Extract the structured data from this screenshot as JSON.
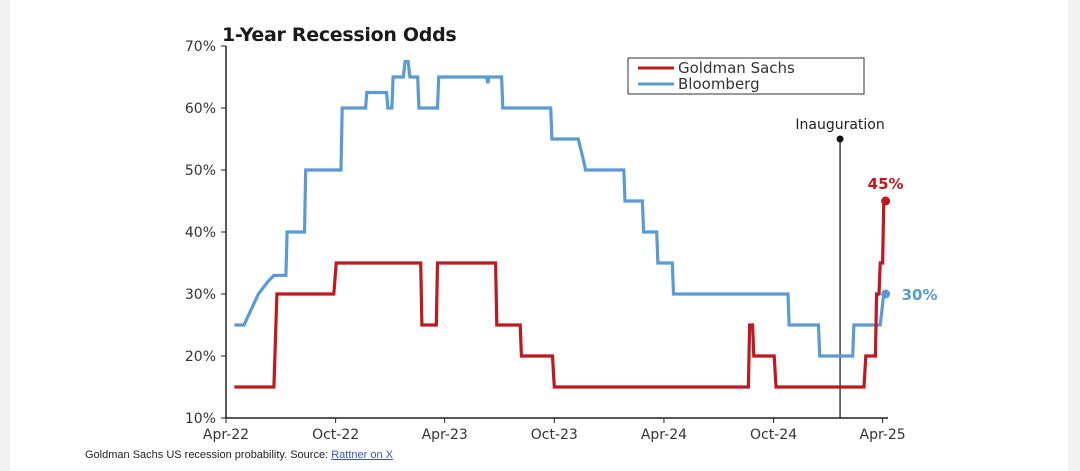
{
  "caption": {
    "text": "Goldman Sachs US recession probability. Source: ",
    "link_text": "Rattner on X"
  },
  "chart_data": {
    "type": "line",
    "title": "1-Year Recession Odds",
    "xlabel": "",
    "ylabel": "",
    "y_ticks": [
      "10%",
      "20%",
      "30%",
      "40%",
      "50%",
      "60%",
      "70%"
    ],
    "ylim": [
      10,
      70
    ],
    "x_ticks": [
      "Apr-22",
      "Oct-22",
      "Apr-23",
      "Oct-23",
      "Apr-24",
      "Oct-24",
      "Apr-25"
    ],
    "x_range": [
      "2022-04-01",
      "2025-04-10"
    ],
    "grid": false,
    "legend_position": "top-right",
    "series": [
      {
        "name": "Goldman Sachs",
        "color": "#c0181f",
        "step": true,
        "end_label": "45%",
        "points": [
          [
            "2022-04-15",
            15
          ],
          [
            "2022-06-20",
            15
          ],
          [
            "2022-06-25",
            30
          ],
          [
            "2022-09-28",
            30
          ],
          [
            "2022-10-02",
            35
          ],
          [
            "2023-02-20",
            35
          ],
          [
            "2023-02-22",
            25
          ],
          [
            "2023-03-18",
            25
          ],
          [
            "2023-03-20",
            35
          ],
          [
            "2023-06-25",
            35
          ],
          [
            "2023-06-27",
            25
          ],
          [
            "2023-08-05",
            25
          ],
          [
            "2023-08-07",
            20
          ],
          [
            "2023-09-28",
            20
          ],
          [
            "2023-10-01",
            15
          ],
          [
            "2024-08-20",
            15
          ],
          [
            "2024-08-22",
            25
          ],
          [
            "2024-08-27",
            25
          ],
          [
            "2024-08-29",
            20
          ],
          [
            "2024-10-02",
            20
          ],
          [
            "2024-10-05",
            15
          ],
          [
            "2025-03-01",
            15
          ],
          [
            "2025-03-04",
            20
          ],
          [
            "2025-03-20",
            20
          ],
          [
            "2025-03-22",
            30
          ],
          [
            "2025-03-26",
            30
          ],
          [
            "2025-03-28",
            35
          ],
          [
            "2025-04-01",
            35
          ],
          [
            "2025-04-03",
            45
          ],
          [
            "2025-04-06",
            45
          ]
        ]
      },
      {
        "name": "Bloomberg",
        "color": "#5b9bd5",
        "step": true,
        "end_label": "30%",
        "points": [
          [
            "2022-04-15",
            25
          ],
          [
            "2022-05-01",
            25
          ],
          [
            "2022-05-25",
            30
          ],
          [
            "2022-06-10",
            32
          ],
          [
            "2022-06-20",
            33
          ],
          [
            "2022-07-10",
            33
          ],
          [
            "2022-07-12",
            40
          ],
          [
            "2022-08-10",
            40
          ],
          [
            "2022-08-12",
            50
          ],
          [
            "2022-10-10",
            50
          ],
          [
            "2022-10-12",
            60
          ],
          [
            "2022-11-20",
            60
          ],
          [
            "2022-11-22",
            62.5
          ],
          [
            "2022-12-25",
            62.5
          ],
          [
            "2022-12-27",
            60
          ],
          [
            "2023-01-03",
            60
          ],
          [
            "2023-01-05",
            65
          ],
          [
            "2023-01-22",
            65
          ],
          [
            "2023-01-25",
            67.5
          ],
          [
            "2023-01-30",
            67.5
          ],
          [
            "2023-02-02",
            65
          ],
          [
            "2023-02-15",
            65
          ],
          [
            "2023-02-17",
            60
          ],
          [
            "2023-03-20",
            60
          ],
          [
            "2023-03-22",
            65
          ],
          [
            "2023-06-10",
            65
          ],
          [
            "2023-06-12",
            64
          ],
          [
            "2023-06-14",
            65
          ],
          [
            "2023-07-05",
            65
          ],
          [
            "2023-07-07",
            60
          ],
          [
            "2023-09-25",
            60
          ],
          [
            "2023-09-27",
            55
          ],
          [
            "2023-11-10",
            55
          ],
          [
            "2023-11-20",
            51
          ],
          [
            "2023-11-22",
            50
          ],
          [
            "2024-01-25",
            50
          ],
          [
            "2024-01-27",
            45
          ],
          [
            "2024-02-25",
            45
          ],
          [
            "2024-02-27",
            40
          ],
          [
            "2024-03-20",
            40
          ],
          [
            "2024-03-22",
            35
          ],
          [
            "2024-04-15",
            35
          ],
          [
            "2024-04-17",
            30
          ],
          [
            "2024-10-25",
            30
          ],
          [
            "2024-10-27",
            25
          ],
          [
            "2024-12-15",
            25
          ],
          [
            "2024-12-17",
            20
          ],
          [
            "2025-02-10",
            20
          ],
          [
            "2025-02-12",
            25
          ],
          [
            "2025-03-28",
            25
          ],
          [
            "2025-04-03",
            30
          ],
          [
            "2025-04-06",
            30
          ]
        ]
      }
    ],
    "annotations": [
      {
        "text": "Inauguration",
        "date": "2025-01-20",
        "top_value": 55
      }
    ]
  }
}
